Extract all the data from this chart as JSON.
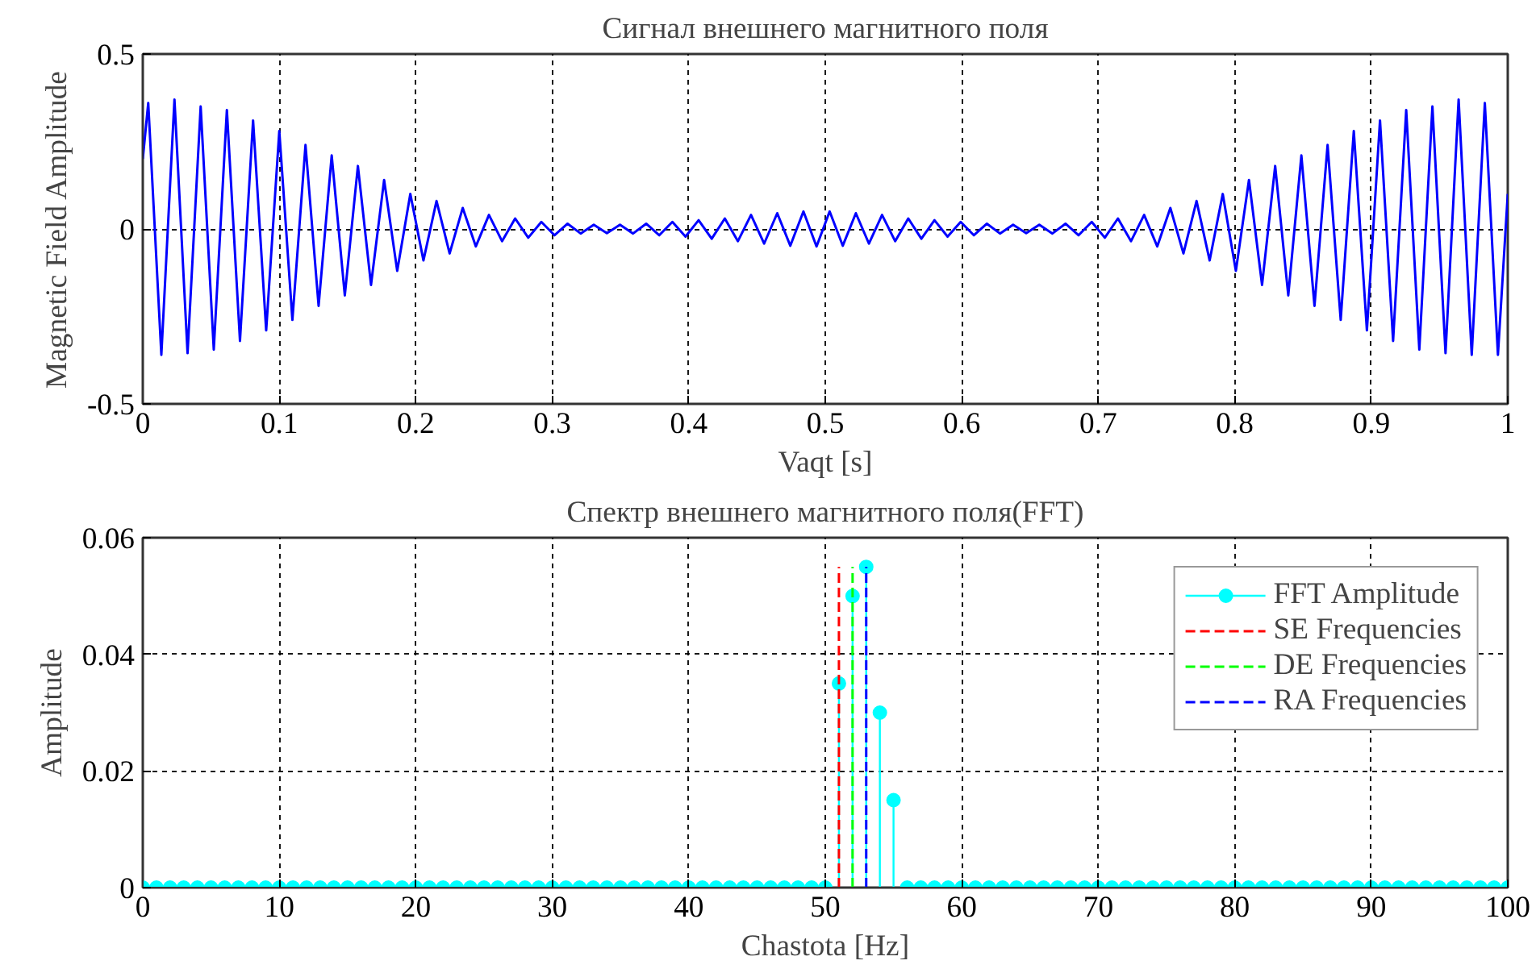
{
  "chart_data": [
    {
      "type": "line",
      "title": "Сигнал внешнего магнитного поля",
      "xlabel": "Vaqt [s]",
      "ylabel": "Magnetic Field Amplitude",
      "xlim": [
        0,
        1
      ],
      "ylim": [
        -0.5,
        0.5
      ],
      "xticks": [
        0,
        0.1,
        0.2,
        0.3,
        0.4,
        0.5,
        0.6,
        0.7,
        0.8,
        0.9,
        1
      ],
      "yticks": [
        -0.5,
        0,
        0.5
      ],
      "grid": true,
      "legend": false,
      "marker": "none",
      "line_style": "solid",
      "series": [
        {
          "color": "#0000ff",
          "x": [
            0,
            0.004,
            0.0136,
            0.0232,
            0.0328,
            0.0424,
            0.052,
            0.0616,
            0.0712,
            0.0808,
            0.0904,
            0.1,
            0.1096,
            0.1192,
            0.1288,
            0.1384,
            0.148,
            0.1576,
            0.1672,
            0.1768,
            0.1864,
            0.196,
            0.2056,
            0.2152,
            0.2248,
            0.2344,
            0.244,
            0.2536,
            0.2632,
            0.2728,
            0.2824,
            0.292,
            0.3016,
            0.3112,
            0.3208,
            0.3304,
            0.34,
            0.3496,
            0.3592,
            0.3688,
            0.3784,
            0.388,
            0.3976,
            0.4072,
            0.4168,
            0.4264,
            0.436,
            0.4456,
            0.4552,
            0.4648,
            0.4744,
            0.484,
            0.4936,
            0.5032,
            0.5128,
            0.5224,
            0.532,
            0.5416,
            0.5512,
            0.5608,
            0.5704,
            0.58,
            0.5896,
            0.5992,
            0.6088,
            0.6184,
            0.628,
            0.6376,
            0.6472,
            0.6568,
            0.6664,
            0.676,
            0.6856,
            0.6952,
            0.7048,
            0.7144,
            0.724,
            0.7336,
            0.7432,
            0.7528,
            0.7624,
            0.772,
            0.7816,
            0.7912,
            0.8008,
            0.8104,
            0.82,
            0.8296,
            0.8392,
            0.8488,
            0.8584,
            0.868,
            0.8776,
            0.8872,
            0.8968,
            0.9064,
            0.916,
            0.9256,
            0.9352,
            0.9448,
            0.9544,
            0.964,
            0.9736,
            0.9832,
            0.9928,
            1
          ],
          "values": [
            0.2,
            0.36,
            -0.36,
            0.37,
            -0.355,
            0.35,
            -0.345,
            0.34,
            -0.32,
            0.31,
            -0.29,
            0.28,
            -0.26,
            0.24,
            -0.22,
            0.21,
            -0.19,
            0.18,
            -0.16,
            0.14,
            -0.12,
            0.1,
            -0.09,
            0.08,
            -0.07,
            0.06,
            -0.05,
            0.04,
            -0.035,
            0.03,
            -0.025,
            0.02,
            -0.018,
            0.015,
            -0.013,
            0.012,
            -0.012,
            0.012,
            -0.013,
            0.015,
            -0.018,
            0.02,
            -0.022,
            0.025,
            -0.028,
            0.03,
            -0.035,
            0.04,
            -0.042,
            0.045,
            -0.048,
            0.05,
            -0.05,
            0.05,
            -0.048,
            0.045,
            -0.042,
            0.04,
            -0.035,
            0.03,
            -0.028,
            0.025,
            -0.022,
            0.02,
            -0.018,
            0.015,
            -0.013,
            0.012,
            -0.012,
            0.012,
            -0.013,
            0.015,
            -0.018,
            0.02,
            -0.025,
            0.03,
            -0.035,
            0.04,
            -0.05,
            0.06,
            -0.07,
            0.08,
            -0.09,
            0.1,
            -0.12,
            0.14,
            -0.16,
            0.18,
            -0.19,
            0.21,
            -0.22,
            0.24,
            -0.26,
            0.28,
            -0.29,
            0.31,
            -0.32,
            0.34,
            -0.345,
            0.35,
            -0.355,
            0.37,
            -0.36,
            0.36,
            -0.36,
            0.1
          ]
        }
      ]
    },
    {
      "type": "lollipop",
      "title": "Спектр внешнего магнитного поля(FFT)",
      "xlabel": "Chastota [Hz]",
      "ylabel": "Amplitude",
      "xlim": [
        0,
        100
      ],
      "ylim": [
        0,
        0.06
      ],
      "xticks": [
        0,
        10,
        20,
        30,
        40,
        50,
        60,
        70,
        80,
        90,
        100
      ],
      "yticks": [
        0,
        0.02,
        0.04,
        0.06
      ],
      "grid": true,
      "legend": "top right",
      "marker": "circle",
      "series": [
        {
          "name": "FFT Amplitude",
          "color": "#00ffff",
          "x": [
            0,
            1,
            2,
            3,
            4,
            5,
            6,
            7,
            8,
            9,
            10,
            11,
            12,
            13,
            14,
            15,
            16,
            17,
            18,
            19,
            20,
            21,
            22,
            23,
            24,
            25,
            26,
            27,
            28,
            29,
            30,
            31,
            32,
            33,
            34,
            35,
            36,
            37,
            38,
            39,
            40,
            41,
            42,
            43,
            44,
            45,
            46,
            47,
            48,
            49,
            50,
            51,
            52,
            53,
            54,
            55,
            56,
            57,
            58,
            59,
            60,
            61,
            62,
            63,
            64,
            65,
            66,
            67,
            68,
            69,
            70,
            71,
            72,
            73,
            74,
            75,
            76,
            77,
            78,
            79,
            80,
            81,
            82,
            83,
            84,
            85,
            86,
            87,
            88,
            89,
            90,
            91,
            92,
            93,
            94,
            95,
            96,
            97,
            98,
            99,
            100
          ],
          "values": [
            0,
            0,
            0,
            0,
            0,
            0,
            0,
            0,
            0,
            0,
            0,
            0,
            0,
            0,
            0,
            0,
            0,
            0,
            0,
            0,
            0,
            0,
            0,
            0,
            0,
            0,
            0,
            0,
            0,
            0,
            0,
            0,
            0,
            0,
            0,
            0,
            0,
            0,
            0,
            0,
            0,
            0,
            0,
            0,
            0,
            0,
            0,
            0,
            0,
            0,
            0,
            0.035,
            0.05,
            0.055,
            0.03,
            0.015,
            0,
            0,
            0,
            0,
            0,
            0,
            0,
            0,
            0,
            0,
            0,
            0,
            0,
            0,
            0,
            0,
            0,
            0,
            0,
            0,
            0,
            0,
            0,
            0,
            0,
            0,
            0,
            0,
            0,
            0,
            0,
            0,
            0,
            0,
            0,
            0,
            0,
            0,
            0,
            0,
            0,
            0,
            0,
            0,
            0
          ]
        },
        {
          "name": "SE Frequencies",
          "type": "line",
          "line_style": "dashed",
          "marker": "none",
          "color": "#ff0000",
          "x": [
            51,
            51
          ],
          "values": [
            0,
            0.055
          ]
        },
        {
          "name": "DE Frequencies",
          "type": "line",
          "line_style": "dashed",
          "marker": "none",
          "color": "#00ff00",
          "x": [
            52,
            52
          ],
          "values": [
            0,
            0.055
          ]
        },
        {
          "name": "RA Frequencies",
          "type": "line",
          "line_style": "dashed",
          "marker": "none",
          "color": "#0000ff",
          "x": [
            53,
            53
          ],
          "values": [
            0,
            0.055
          ]
        }
      ]
    }
  ]
}
